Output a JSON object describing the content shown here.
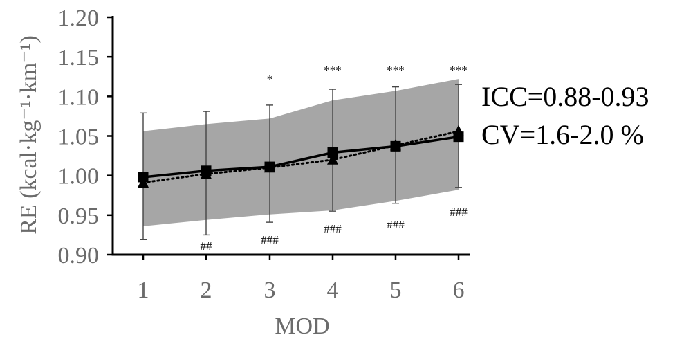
{
  "chart_data": {
    "type": "line",
    "xlabel": "MOD",
    "ylabel": "RE (kcal·kg⁻¹·km⁻¹)",
    "categories": [
      "1",
      "2",
      "3",
      "4",
      "5",
      "6"
    ],
    "ylim": [
      0.9,
      1.2
    ],
    "yticks": [
      "0.90",
      "0.95",
      "1.00",
      "1.05",
      "1.10",
      "1.15",
      "1.20"
    ],
    "series": [
      {
        "marker": "square",
        "line": "solid",
        "values": [
          0.998,
          1.006,
          1.011,
          1.029,
          1.037,
          1.049
        ],
        "error_upper": [
          1.079,
          1.081,
          1.089,
          1.109,
          1.112,
          1.115
        ],
        "error_lower": [
          0.919,
          0.925,
          0.941,
          0.955,
          0.965,
          0.985
        ]
      },
      {
        "marker": "triangle",
        "line": "dotted",
        "values": [
          0.991,
          1.002,
          1.01,
          1.02,
          1.038,
          1.056
        ]
      }
    ],
    "band": {
      "upper": [
        1.056,
        1.065,
        1.072,
        1.095,
        1.107,
        1.122
      ],
      "lower": [
        0.936,
        0.944,
        0.951,
        0.956,
        0.968,
        0.982
      ]
    },
    "significance_above": [
      "",
      "",
      "*",
      "***",
      "***",
      "***"
    ],
    "significance_below": [
      "",
      "##",
      "###",
      "###",
      "###",
      "###"
    ],
    "annotations": [
      "ICC=0.88-0.93",
      "CV=1.6-2.0 %"
    ],
    "colors": {
      "band": "#a6a6a6",
      "line": "#000000",
      "axis": "#000000",
      "errorbar": "#444444",
      "tick_text": "#6b6b6b"
    }
  }
}
